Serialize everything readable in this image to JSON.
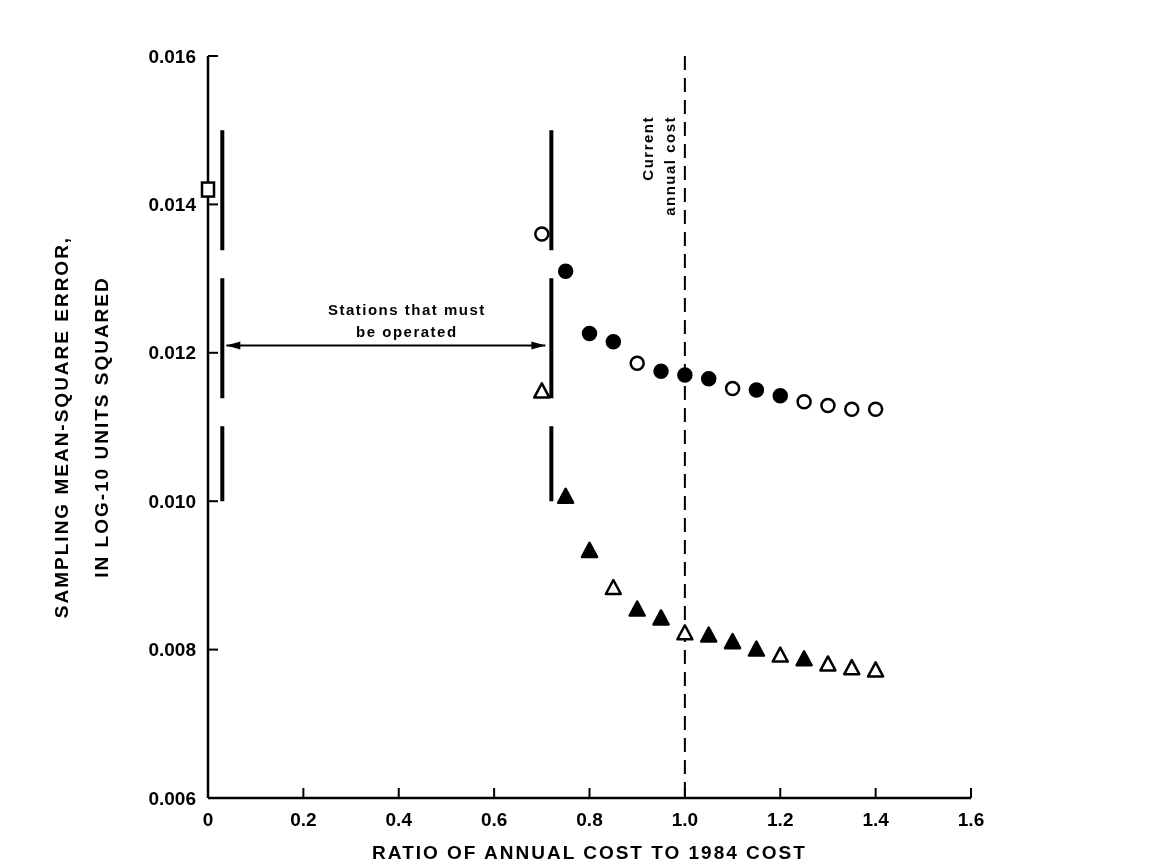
{
  "chart_data": {
    "type": "scatter",
    "xlabel": "RATIO OF ANNUAL COST TO 1984 COST",
    "ylabel": "SAMPLING MEAN-SQUARE ERROR,\nIN LOG-10 UNITS SQUARED",
    "xlim": [
      0,
      1.6
    ],
    "xticks": [
      0,
      0.2,
      0.4,
      0.6,
      0.8,
      {
        "value": 1,
        "label": "1.0"
      },
      1.2,
      1.4,
      1.6
    ],
    "ylim": [
      0.006,
      0.016
    ],
    "yticks": [
      {
        "value": 0.006,
        "label": "0.006"
      },
      0.008,
      {
        "value": 0.01,
        "label": "0.010"
      },
      0.012,
      0.014,
      0.016
    ],
    "grid": false,
    "series": [
      {
        "marker": "square",
        "color": "#000000",
        "x": [
          0
        ],
        "values": [
          0.0142
        ],
        "colors": [
          "#ffffff"
        ]
      },
      {
        "marker": "circle",
        "color": "#000000",
        "x": [
          0.7,
          0.75,
          0.8,
          0.85,
          0.9,
          0.95,
          1,
          1.05,
          1.1,
          1.15,
          1.2,
          1.25,
          1.3,
          1.35,
          1.4
        ],
        "values": [
          0.0136,
          0.0131,
          0.01226,
          0.01215,
          0.01186,
          0.01175,
          0.0117,
          0.01165,
          0.01152,
          0.0115,
          0.01142,
          0.01134,
          0.01129,
          0.01124,
          0.01124
        ],
        "colors": [
          "#ffffff",
          "#000000",
          "#000000",
          "#000000",
          "#ffffff",
          "#000000",
          "#000000",
          "#000000",
          "#ffffff",
          "#000000",
          "#000000",
          "#ffffff",
          "#ffffff",
          "#ffffff",
          "#ffffff"
        ]
      },
      {
        "marker": "triangle",
        "color": "#000000",
        "x": [
          0.7,
          0.75,
          0.8,
          0.85,
          0.9,
          0.95,
          1,
          1.05,
          1.1,
          1.15,
          1.2,
          1.25,
          1.3,
          1.35,
          1.4
        ],
        "values": [
          0.01148,
          0.01006,
          0.00933,
          0.00883,
          0.00854,
          0.00842,
          0.00822,
          0.00819,
          0.0081,
          0.008,
          0.00792,
          0.00787,
          0.0078,
          0.00775,
          0.00772
        ],
        "colors": [
          "#ffffff",
          "#000000",
          "#000000",
          "#ffffff",
          "#000000",
          "#000000",
          "#ffffff",
          "#000000",
          "#000000",
          "#000000",
          "#ffffff",
          "#000000",
          "#ffffff",
          "#ffffff",
          "#ffffff"
        ]
      }
    ],
    "ref_lines": [
      {
        "axis": "x",
        "value": 1,
        "label": "Current annual cost",
        "line_style": "dashed",
        "color": "#000000"
      },
      {
        "axis": "x",
        "value": 0.03,
        "line_style": "dashed",
        "color": "#000000"
      },
      {
        "axis": "x",
        "value": 0.72,
        "line_style": "dashed",
        "color": "#000000"
      }
    ],
    "annotations": [
      "Stations that must be operated"
    ]
  }
}
